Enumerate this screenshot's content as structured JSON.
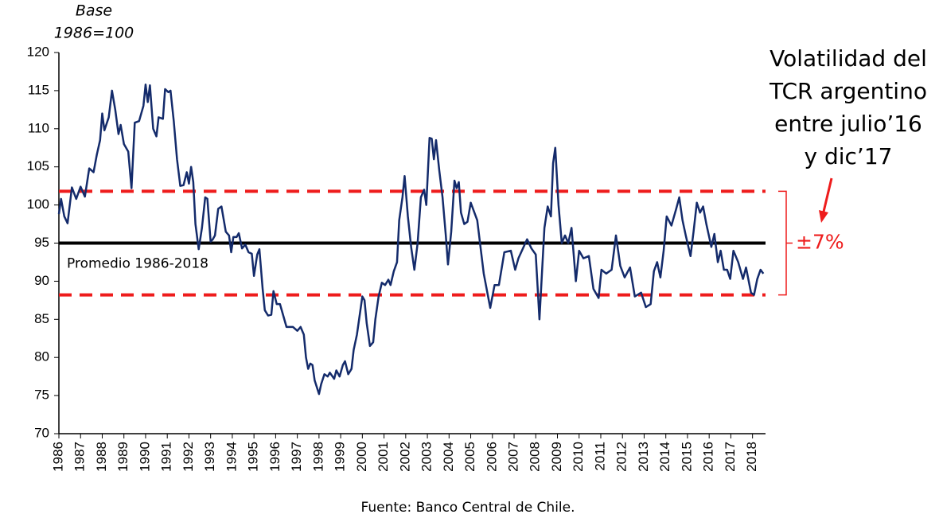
{
  "chart_data": {
    "type": "line",
    "ylabel": [
      "Base",
      "1986=100"
    ],
    "annotation_lines": [
      "Volatilidad del",
      "TCR argentino",
      "entre julio’16",
      "y dic’17"
    ],
    "band_label": "±7%",
    "source": "Fuente: Banco Central de Chile.",
    "hlines": [
      {
        "value": 95,
        "color": "#000000",
        "dashed": false,
        "label": "Promedio 1986-2018"
      },
      {
        "value": 101.8,
        "color": "#ee1c1c",
        "dashed": true
      },
      {
        "value": 88.2,
        "color": "#ee1c1c",
        "dashed": true
      }
    ],
    "xlim": [
      1986,
      2018.6
    ],
    "xticks": [
      1986,
      1987,
      1988,
      1989,
      1990,
      1991,
      1992,
      1993,
      1994,
      1995,
      1996,
      1997,
      1998,
      1999,
      2000,
      2001,
      2002,
      2003,
      2004,
      2005,
      2006,
      2007,
      2008,
      2009,
      2010,
      2011,
      2012,
      2013,
      2014,
      2015,
      2016,
      2017,
      2018
    ],
    "ylim": [
      70,
      120
    ],
    "yticks": [
      70,
      75,
      80,
      85,
      90,
      95,
      100,
      105,
      110,
      115,
      120
    ],
    "x": [
      1986.0,
      1986.1,
      1986.25,
      1986.4,
      1986.6,
      1986.8,
      1987.0,
      1987.2,
      1987.4,
      1987.6,
      1987.75,
      1987.9,
      1988.0,
      1988.1,
      1988.3,
      1988.45,
      1988.6,
      1988.75,
      1988.85,
      1989.0,
      1989.2,
      1989.35,
      1989.5,
      1989.7,
      1989.9,
      1990.0,
      1990.1,
      1990.2,
      1990.35,
      1990.5,
      1990.6,
      1990.8,
      1990.9,
      1991.05,
      1991.15,
      1991.3,
      1991.45,
      1991.6,
      1991.75,
      1991.9,
      1992.0,
      1992.1,
      1992.2,
      1992.3,
      1992.45,
      1992.6,
      1992.75,
      1992.85,
      1993.0,
      1993.1,
      1993.2,
      1993.35,
      1993.5,
      1993.7,
      1993.85,
      1993.95,
      1994.05,
      1994.2,
      1994.3,
      1994.45,
      1994.6,
      1994.75,
      1994.9,
      1995.0,
      1995.15,
      1995.25,
      1995.4,
      1995.5,
      1995.65,
      1995.8,
      1995.9,
      1996.05,
      1996.2,
      1996.35,
      1996.5,
      1996.8,
      1997.0,
      1997.15,
      1997.3,
      1997.4,
      1997.5,
      1997.6,
      1997.7,
      1997.8,
      1998.0,
      1998.1,
      1998.25,
      1998.4,
      1998.5,
      1998.7,
      1998.8,
      1998.95,
      1999.1,
      1999.2,
      1999.35,
      1999.5,
      1999.6,
      1999.75,
      1999.85,
      2000.0,
      2000.1,
      2000.2,
      2000.35,
      2000.5,
      2000.6,
      2000.75,
      2000.9,
      2001.05,
      2001.2,
      2001.3,
      2001.45,
      2001.6,
      2001.7,
      2001.85,
      2001.95,
      2002.1,
      2002.25,
      2002.4,
      2002.55,
      2002.7,
      2002.85,
      2002.95,
      2003.1,
      2003.2,
      2003.3,
      2003.4,
      2003.55,
      2003.7,
      2003.85,
      2003.95,
      2004.1,
      2004.25,
      2004.35,
      2004.45,
      2004.55,
      2004.7,
      2004.85,
      2005.0,
      2005.3,
      2005.6,
      2005.9,
      2006.1,
      2006.3,
      2006.55,
      2006.85,
      2007.05,
      2007.2,
      2007.6,
      2007.8,
      2008.0,
      2008.17,
      2008.4,
      2008.55,
      2008.7,
      2008.8,
      2008.9,
      2009.05,
      2009.2,
      2009.35,
      2009.5,
      2009.65,
      2009.85,
      2010.0,
      2010.2,
      2010.45,
      2010.66,
      2010.9,
      2011.03,
      2011.25,
      2011.5,
      2011.7,
      2011.9,
      2012.1,
      2012.35,
      2012.57,
      2012.86,
      2013.08,
      2013.3,
      2013.45,
      2013.6,
      2013.75,
      2013.9,
      2014.04,
      2014.26,
      2014.48,
      2014.62,
      2014.77,
      2014.92,
      2015.14,
      2015.28,
      2015.43,
      2015.58,
      2015.72,
      2015.87,
      2016.1,
      2016.24,
      2016.4,
      2016.53,
      2016.68,
      2016.83,
      2016.97,
      2017.12,
      2017.34,
      2017.56,
      2017.7,
      2017.93,
      2018.07,
      2018.22,
      2018.37,
      2018.5
    ],
    "series": [
      {
        "color": "#142b6b",
        "values": [
          98.8,
          100.8,
          98.5,
          97.6,
          102.3,
          100.8,
          102.4,
          101.1,
          104.8,
          104.3,
          106.6,
          108.5,
          112.0,
          109.8,
          111.5,
          115.0,
          112.5,
          109.3,
          110.5,
          108.0,
          107.0,
          102.2,
          110.8,
          111.0,
          113.0,
          115.8,
          113.5,
          115.7,
          110.0,
          109.0,
          111.5,
          111.3,
          115.2,
          114.8,
          115.0,
          111.0,
          106.0,
          102.5,
          102.6,
          104.3,
          102.8,
          105.0,
          103.0,
          97.5,
          94.2,
          97.0,
          101.0,
          100.8,
          95.2,
          95.5,
          96.0,
          99.5,
          99.8,
          96.5,
          96.0,
          93.8,
          95.8,
          95.8,
          96.3,
          94.3,
          94.8,
          93.8,
          93.6,
          90.7,
          93.5,
          94.2,
          89.0,
          86.2,
          85.5,
          85.6,
          88.7,
          87.0,
          87.0,
          85.5,
          84.0,
          84.0,
          83.5,
          84.0,
          83.0,
          80.0,
          78.5,
          79.2,
          79.0,
          77.0,
          75.2,
          76.5,
          77.8,
          77.5,
          78.0,
          77.2,
          78.3,
          77.5,
          79.0,
          79.5,
          77.8,
          78.5,
          81.0,
          83.0,
          85.0,
          88.0,
          87.5,
          84.5,
          81.5,
          82.0,
          85.0,
          88.0,
          89.8,
          89.5,
          90.2,
          89.5,
          91.3,
          92.5,
          98.0,
          101.0,
          103.8,
          98.5,
          94.5,
          91.5,
          95.0,
          101.0,
          102.0,
          100.0,
          108.8,
          108.7,
          106.0,
          108.5,
          104.5,
          101.0,
          96.0,
          92.2,
          96.5,
          103.2,
          102.2,
          103.0,
          99.0,
          97.5,
          97.8,
          100.3,
          98.0,
          91.0,
          86.5,
          89.5,
          89.5,
          93.8,
          94.0,
          91.5,
          93.0,
          95.5,
          94.3,
          93.5,
          85.0,
          97.0,
          99.8,
          98.5,
          105.5,
          107.5,
          100.0,
          95.0,
          96.0,
          95.0,
          97.0,
          90.0,
          94.0,
          93.0,
          93.3,
          89.0,
          87.8,
          91.5,
          91.0,
          91.5,
          96.0,
          92.0,
          90.5,
          91.8,
          88.0,
          88.5,
          86.6,
          87.0,
          91.3,
          92.5,
          90.5,
          94.0,
          98.5,
          97.3,
          99.5,
          101.0,
          98.0,
          96.0,
          93.3,
          96.5,
          100.3,
          99.0,
          99.8,
          97.5,
          94.5,
          96.2,
          92.5,
          94.0,
          91.5,
          91.5,
          90.3,
          94.0,
          92.5,
          90.3,
          91.8,
          88.5,
          88.2,
          90.3,
          91.5,
          91.0
        ]
      }
    ]
  }
}
